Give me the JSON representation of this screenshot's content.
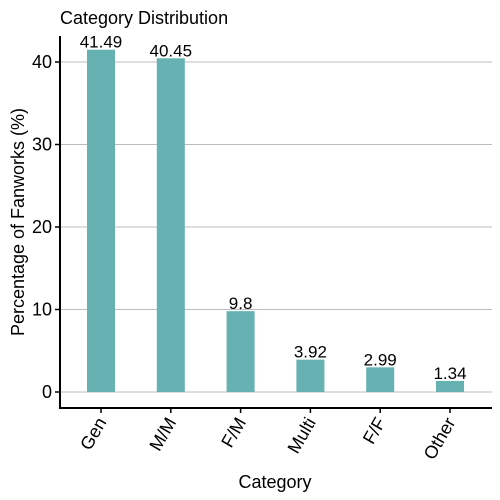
{
  "chart_data": {
    "type": "bar",
    "title": "Category Distribution",
    "xlabel": "Category",
    "ylabel": "Percentage of Fanworks (%)",
    "categories": [
      "Gen",
      "M/M",
      "F/M",
      "Multi",
      "F/F",
      "Other"
    ],
    "values": [
      41.49,
      40.45,
      9.8,
      3.92,
      2.99,
      1.34
    ],
    "value_labels": [
      "41.49",
      "40.45",
      "9.8",
      "3.92",
      "2.99",
      "1.34"
    ],
    "yticks": [
      0,
      10,
      20,
      30,
      40
    ],
    "ylim": [
      0,
      43
    ],
    "grid": "horizontal major",
    "bar_color": "#66b2b2",
    "legend": "none"
  }
}
